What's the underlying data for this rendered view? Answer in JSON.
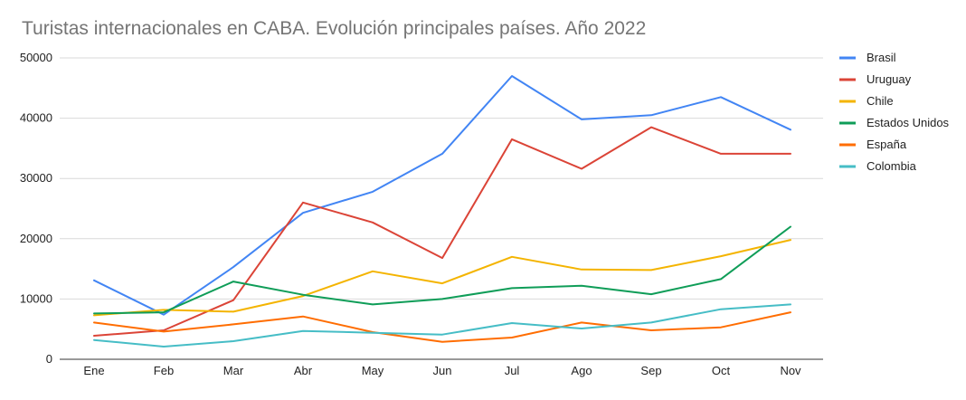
{
  "chart_data": {
    "type": "line",
    "title": "Turistas internacionales en CABA. Evolución principales países. Año 2022",
    "xlabel": "",
    "ylabel": "",
    "categories": [
      "Ene",
      "Feb",
      "Mar",
      "Abr",
      "May",
      "Jun",
      "Jul",
      "Ago",
      "Sep",
      "Oct",
      "Nov"
    ],
    "ylim": [
      0,
      50000
    ],
    "yticks": [
      "0",
      "10000",
      "20000",
      "30000",
      "40000",
      "50000"
    ],
    "grid": true,
    "legend_position": "right",
    "series": [
      {
        "name": "Brasil",
        "color": "#4285f4",
        "values": [
          13100,
          7400,
          15300,
          24300,
          27800,
          34100,
          47000,
          39800,
          40500,
          43500,
          38100
        ]
      },
      {
        "name": "Uruguay",
        "color": "#db4437",
        "values": [
          3900,
          4800,
          9800,
          26000,
          22700,
          16800,
          36500,
          31600,
          38500,
          34100,
          34100
        ]
      },
      {
        "name": "Chile",
        "color": "#f4b400",
        "values": [
          7300,
          8200,
          7900,
          10500,
          14600,
          12600,
          17000,
          14900,
          14800,
          17100,
          19800
        ]
      },
      {
        "name": "Estados Unidos",
        "color": "#0f9d58",
        "values": [
          7600,
          7800,
          12900,
          10700,
          9100,
          10000,
          11800,
          12200,
          10800,
          13300,
          22000
        ]
      },
      {
        "name": "España",
        "color": "#ff6d01",
        "values": [
          6100,
          4600,
          5800,
          7100,
          4500,
          2900,
          3600,
          6100,
          4800,
          5300,
          7800
        ]
      },
      {
        "name": "Colombia",
        "color": "#46bdc6",
        "values": [
          3200,
          2100,
          3000,
          4700,
          4400,
          4100,
          6000,
          5100,
          6100,
          8300,
          9100
        ]
      }
    ]
  }
}
